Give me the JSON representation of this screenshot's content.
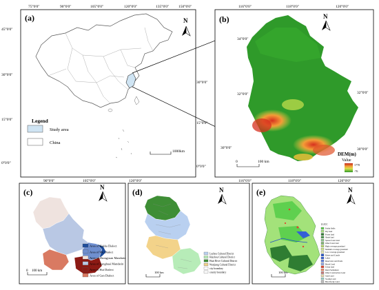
{
  "panels": {
    "a": {
      "label": "(a)",
      "top_ticks": [
        "75°0'0\"",
        "90°0'0\"",
        "105°0'0\"",
        "120°0'0\"",
        "135°0'0\"",
        "150°0'0\""
      ],
      "bottom_ticks": [
        "90°0'0\"",
        "105°0'0\"",
        "120°0'0\""
      ],
      "left_ticks": [
        "45°0'0\"",
        "30°0'0\"",
        "15°0'0\"",
        "0°0'0\""
      ],
      "right_ticks": [
        "30°0'0\"",
        "15°0'0\"",
        "0°0'0\""
      ],
      "legend_title": "Legend",
      "legend_items": [
        {
          "label": "Study area",
          "color": "#cfe4f3"
        },
        {
          "label": "China",
          "color": "#ffffff"
        }
      ],
      "scale_label": "1000km",
      "north": "N"
    },
    "b": {
      "label": "(b)",
      "top_ticks": [
        "116°0'0\"",
        "118°0'0\"",
        "120°0'0\""
      ],
      "bottom_ticks": [
        "116°0'0\"",
        "118°0'0\"",
        "120°0'0\""
      ],
      "left_ticks": [
        "34°0'0\"",
        "32°0'0\"",
        "30°0'0\""
      ],
      "right_ticks": [
        "32°0'0\"",
        "30°0'0\""
      ],
      "legend_title": "DEM(m)",
      "legend_sub": "Value",
      "legend_high": "1778",
      "legend_low": "-76",
      "scale_label": "100 km",
      "scale_zero": "0",
      "north": "N"
    },
    "c": {
      "label": "(c)",
      "north": "N",
      "scale_zero": "0",
      "scale_label": "100 km",
      "legend_items": [
        {
          "label": "Area of Hakka Dialect",
          "color": "#1f4e9c"
        },
        {
          "label": "Area of Wu Dialect",
          "color": "#6f8fd0"
        },
        {
          "label": "Area of Zhongyuan Mandarin",
          "color": "#efe3df"
        },
        {
          "label": "Area of Jianghuai Mandarin",
          "color": "#b9c8e4"
        },
        {
          "label": "Area of Hui Dialect",
          "color": "#8c1a14"
        },
        {
          "label": "Area of Gan Dialect",
          "color": "#d97a62"
        }
      ]
    },
    "d": {
      "label": "(d)",
      "north": "N",
      "scale_label": "100 km",
      "legend_items": [
        {
          "label": "Luzhou Cultural District",
          "color": "#b9d0f0"
        },
        {
          "label": "Huizhou Cultural District",
          "color": "#b7ecb8"
        },
        {
          "label": "Huai River Cultural District",
          "color": "#3e8e35"
        },
        {
          "label": "Wanjiang Cultural District",
          "color": "#f3d38a"
        },
        {
          "label": "city boundary",
          "color": "#ffffff"
        },
        {
          "label": "county boundary",
          "color": "#ffffff"
        }
      ]
    },
    "e": {
      "label": "(e)",
      "north": "N",
      "scale_label": "100 km",
      "legend_title": "LUCC",
      "legend_items": [
        {
          "label": "Paddy fields",
          "color": "#5fd04f"
        },
        {
          "label": "Dry land",
          "color": "#a3e27a"
        },
        {
          "label": "Forest land",
          "color": "#2f7d32"
        },
        {
          "label": "Shrub land",
          "color": "#4c9a4e"
        },
        {
          "label": "Sparse forest land",
          "color": "#8bc48a"
        },
        {
          "label": "Other forest land",
          "color": "#7db46c"
        },
        {
          "label": "High coverage grassland",
          "color": "#b5d96b"
        },
        {
          "label": "Medium coverage grassland",
          "color": "#d0e48b"
        },
        {
          "label": "Low coverage grassland",
          "color": "#e3ecb0"
        },
        {
          "label": "Rivers and Canals",
          "color": "#1f4fc7"
        },
        {
          "label": "Lakes",
          "color": "#3560d6"
        },
        {
          "label": "Reservoirs and Ponds",
          "color": "#5a7de0"
        },
        {
          "label": "Beach Land",
          "color": "#8fa6e6"
        },
        {
          "label": "Urban land",
          "color": "#e0442f"
        },
        {
          "label": "Rural Settlement",
          "color": "#f08a6a"
        },
        {
          "label": "Other Construction Land",
          "color": "#c77474"
        },
        {
          "label": "Sand Land",
          "color": "#e8d6a8"
        },
        {
          "label": "Swamp Land",
          "color": "#9ad0c4"
        },
        {
          "label": "Bare Rocky Land",
          "color": "#bdbdbd"
        }
      ]
    }
  }
}
